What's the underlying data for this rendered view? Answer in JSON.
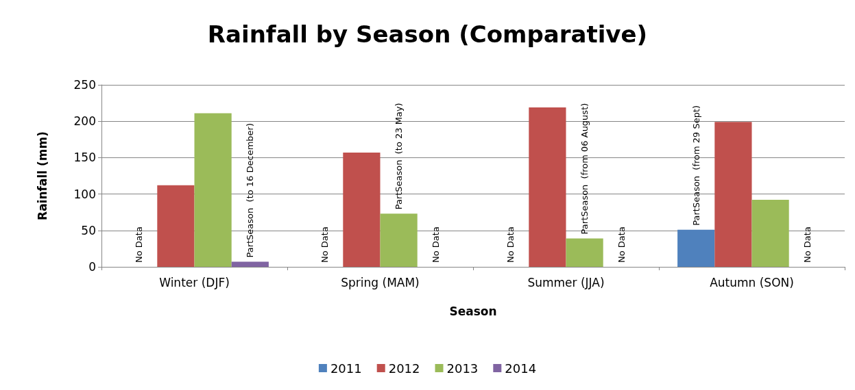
{
  "chart_data": {
    "type": "bar",
    "title": "Rainfall by Season (Comparative)",
    "xlabel": "Season",
    "ylabel": "Rainfall (mm)",
    "categories": [
      "Winter (DJF)",
      "Spring (MAM)",
      "Summer (JJA)",
      "Autumn (SON)"
    ],
    "series": [
      {
        "name": "2011",
        "color": "#4f81bd",
        "values": [
          null,
          null,
          null,
          51
        ],
        "value_labels": [
          "No Data",
          "No Data",
          "No Data",
          "PartSeason  (from 29 Sept)"
        ]
      },
      {
        "name": "2012",
        "color": "#c0504d",
        "values": [
          112,
          157,
          219,
          199
        ],
        "value_labels": [
          null,
          null,
          null,
          null
        ]
      },
      {
        "name": "2013",
        "color": "#9bbb59",
        "values": [
          211,
          73,
          39,
          92
        ],
        "value_labels": [
          null,
          "PartSeason  (to 23 May)",
          "PartSeason  (from 06 August)",
          null
        ]
      },
      {
        "name": "2014",
        "color": "#8064a2",
        "values": [
          7,
          null,
          null,
          null
        ],
        "value_labels": [
          "PartSeason  (to 16 December)",
          "No Data",
          "No Data",
          "No Data"
        ]
      }
    ],
    "ylim": [
      0,
      250
    ],
    "yticks": [
      0,
      50,
      100,
      150,
      200,
      250
    ],
    "grid": "y",
    "legend": "bottom"
  }
}
